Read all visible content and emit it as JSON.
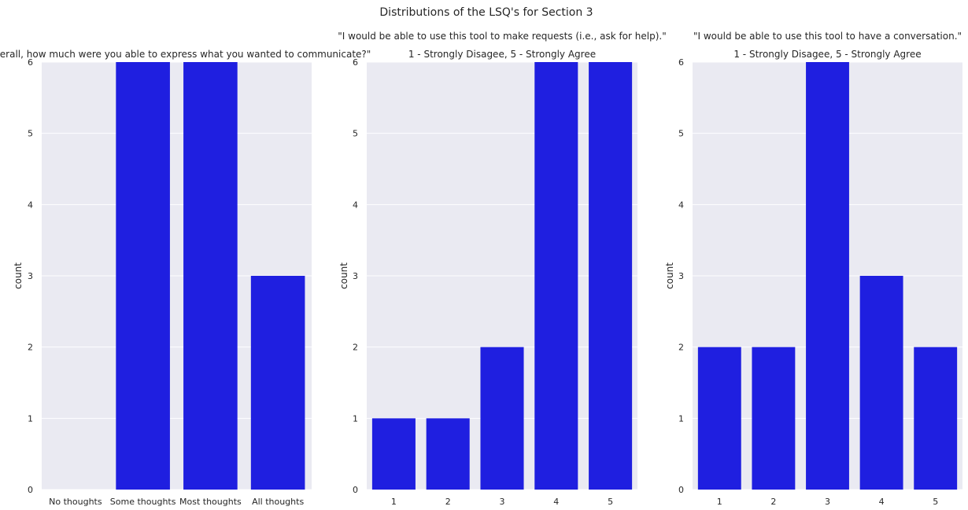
{
  "figure_title": "Distributions of the LSQ's for Section 3",
  "chart_data": [
    {
      "type": "bar",
      "title": "\"Overall, how much were you able to express what you wanted to communicate?\"",
      "subtitle": "",
      "xlabel": "",
      "ylabel": "count",
      "categories": [
        "No thoughts",
        "Some thoughts",
        "Most thoughts",
        "All thoughts"
      ],
      "values": [
        0,
        6,
        6,
        3
      ],
      "ylim": [
        0,
        6
      ],
      "yticks": [
        0,
        1,
        2,
        3,
        4,
        5,
        6
      ],
      "bar_color": "#1f1fe0",
      "background_color": "#eaeaf2",
      "grid": true
    },
    {
      "type": "bar",
      "title": "\"I would be able to use this tool to make requests (i.e., ask for help).\"",
      "subtitle": "1 - Strongly Disagee, 5 - Strongly Agree",
      "xlabel": "",
      "ylabel": "count",
      "categories": [
        "1",
        "2",
        "3",
        "4",
        "5"
      ],
      "values": [
        1,
        1,
        2,
        6,
        6
      ],
      "ylim": [
        0,
        6
      ],
      "yticks": [
        0,
        1,
        2,
        3,
        4,
        5,
        6
      ],
      "bar_color": "#1f1fe0",
      "background_color": "#eaeaf2",
      "grid": true
    },
    {
      "type": "bar",
      "title": "\"I would be able to use this tool to have a conversation.\"",
      "subtitle": "1 - Strongly Disagee, 5 - Strongly Agree",
      "xlabel": "",
      "ylabel": "count",
      "categories": [
        "1",
        "2",
        "3",
        "4",
        "5"
      ],
      "values": [
        2,
        2,
        6,
        3,
        2
      ],
      "ylim": [
        0,
        6
      ],
      "yticks": [
        0,
        1,
        2,
        3,
        4,
        5,
        6
      ],
      "bar_color": "#1f1fe0",
      "background_color": "#eaeaf2",
      "grid": true
    }
  ]
}
